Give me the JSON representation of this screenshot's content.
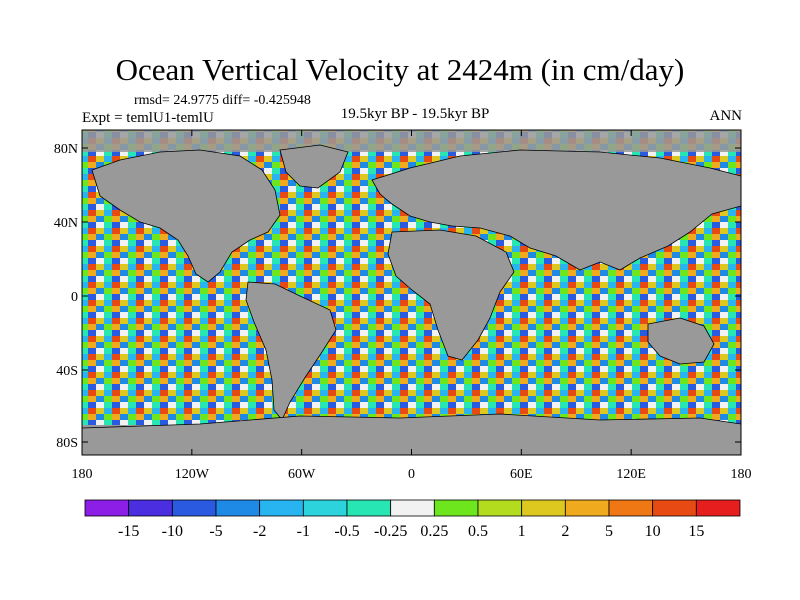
{
  "title": "Ocean Vertical Velocity at 2424m (in cm/day)",
  "stats": "rmsd= 24.9775  diff= -0.425948",
  "experiment": "Expt = temlU1-temlU",
  "period": "19.5kyr BP - 19.5kyr BP",
  "season": "ANN",
  "lat_labels": [
    "80N",
    "40N",
    "0",
    "40S",
    "80S"
  ],
  "lon_labels": [
    "180",
    "120W",
    "60W",
    "0",
    "60E",
    "120E",
    "180"
  ],
  "colorbar": {
    "labels": [
      "-15",
      "-10",
      "-5",
      "-2",
      "-1",
      "-0.5",
      "-0.25",
      "0.25",
      "0.5",
      "1",
      "2",
      "5",
      "10",
      "15"
    ],
    "colors": [
      "#8c1ee6",
      "#4a2ee0",
      "#2a5ae0",
      "#1e8ae6",
      "#28b4f0",
      "#2cd2dc",
      "#28e6b4",
      "#f2f2f2",
      "#6ee61e",
      "#b4dc1e",
      "#dcc81e",
      "#f0aa1e",
      "#f07814",
      "#e84a14",
      "#e61e1e"
    ]
  },
  "colors": {
    "land": "#999999",
    "coast": "#000000"
  }
}
